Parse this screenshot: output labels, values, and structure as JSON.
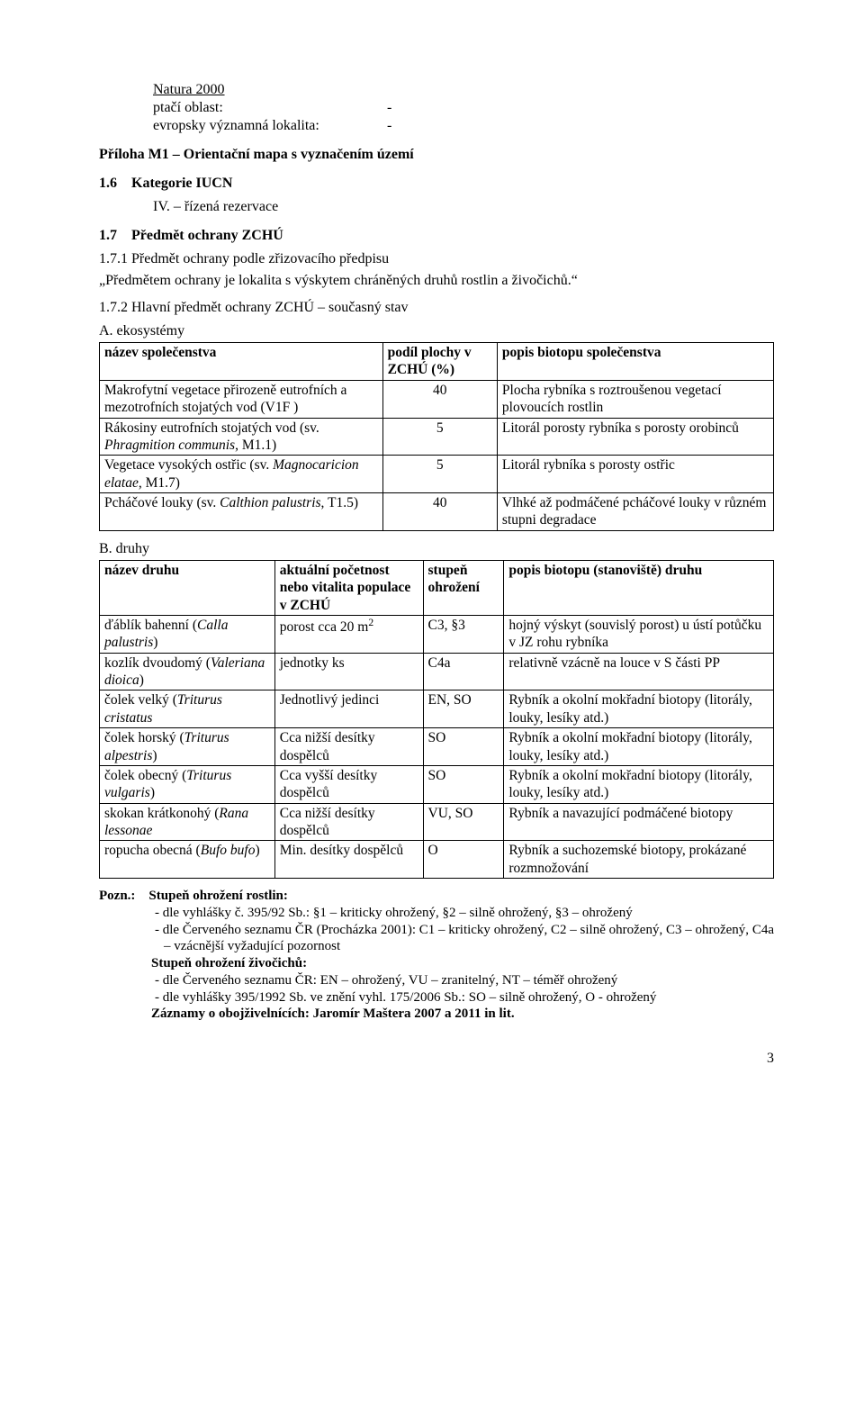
{
  "header": {
    "natura": "Natura 2000",
    "bird_area_lbl": "ptačí oblast:",
    "bird_area_val": "-",
    "eu_site_lbl": "evropsky významná lokalita:",
    "eu_site_val": "-"
  },
  "annex": "Příloha M1 – Orientační mapa s vyznačením území",
  "s16": {
    "num": "1.6",
    "title": "Kategorie IUCN",
    "line": "IV. – řízená rezervace"
  },
  "s17": {
    "num": "1.7",
    "title": "Předmět ochrany ZCHÚ"
  },
  "s171": {
    "title": "1.7.1 Předmět ochrany podle zřizovacího předpisu",
    "text": "„Předmětem ochrany je lokalita s výskytem chráněných druhů rostlin a živočichů.“"
  },
  "s172": {
    "title": "1.7.2 Hlavní předmět ochrany ZCHÚ – současný stav"
  },
  "secA": {
    "label": "A. ekosystémy",
    "head": {
      "c1": "název společenstva",
      "c2": "podíl  plochy v ZCHÚ (%)",
      "c3": "popis biotopu společenstva"
    },
    "rows": [
      {
        "c1": "Makrofytní vegetace přirozeně eutrofních a mezotrofních stojatých vod (V1F )",
        "c2": "40",
        "c3": "Plocha rybníka s roztroušenou vegetací plovoucích rostlin"
      },
      {
        "c1_a": "Rákosiny eutrofních stojatých vod (sv. ",
        "c1_i": "Phragmition communis",
        "c1_b": ", M1.1)",
        "c2": "5",
        "c3": "Litorál porosty rybníka s porosty orobinců"
      },
      {
        "c1_a": "Vegetace vysokých ostřic (sv. ",
        "c1_i": "Magnocaricion elatae",
        "c1_b": ", M1.7)",
        "c2": "5",
        "c3": "Litorál rybníka s porosty ostřic"
      },
      {
        "c1_a": "Pcháčové louky (sv. ",
        "c1_i": "Calthion palustris",
        "c1_b": ", T1.5)",
        "c2": "40",
        "c3": "Vlhké až podmáčené pcháčové louky v různém stupni degradace"
      }
    ]
  },
  "secB": {
    "label": "B. druhy",
    "head": {
      "c1": "název druhu",
      "c2": "aktuální početnost nebo vitalita populace v ZCHÚ",
      "c3": "stupeň ohrožení",
      "c4": "popis biotopu (stanoviště) druhu"
    },
    "rows": [
      {
        "c1_a": "ďáblík bahenní (",
        "c1_i": "Calla palustris",
        "c1_b": ")",
        "c2_html": "porost cca 20 m<sup>2</sup>",
        "c3": "C3, §3",
        "c4": "hojný výskyt (souvislý porost) u ústí potůčku v JZ rohu rybníka"
      },
      {
        "c1_a": "kozlík dvoudomý (",
        "c1_i": "Valeriana dioica",
        "c1_b": ")",
        "c2": "jednotky ks",
        "c3": "C4a",
        "c4": "relativně vzácně na louce v S části PP"
      },
      {
        "c1_a": "čolek velký (",
        "c1_i": "Triturus cristatus",
        "c1_b": "",
        "c2": "Jednotlivý jedinci",
        "c3": "EN, SO",
        "c4": "Rybník a okolní mokřadní biotopy (litorály, louky, lesíky atd.)"
      },
      {
        "c1_a": "čolek horský (",
        "c1_i": "Triturus alpestris",
        "c1_b": ")",
        "c2": "Cca nižší desítky dospělců",
        "c3": "SO",
        "c4": "Rybník a okolní mokřadní biotopy (litorály, louky, lesíky atd.)"
      },
      {
        "c1_a": "čolek obecný (",
        "c1_i": "Triturus vulgaris",
        "c1_b": ")",
        "c2": "Cca vyšší desítky dospělců",
        "c3": "SO",
        "c4": "Rybník a okolní mokřadní biotopy (litorály, louky, lesíky atd.)"
      },
      {
        "c1_a": "skokan krátkonohý (",
        "c1_i": "Rana lessonae",
        "c1_b": "",
        "c2": "Cca nižší desítky dospělců",
        "c3": "VU, SO",
        "c4": "Rybník a navazující podmáčené biotopy"
      },
      {
        "c1_a": "ropucha obecná (",
        "c1_i": "Bufo bufo",
        "c1_b": ")",
        "c2": "Min. desítky dospělců",
        "c3": "O",
        "c4": "Rybník a suchozemské biotopy, prokázané rozmnožování"
      }
    ]
  },
  "foot": {
    "pozn": "Pozn.:",
    "r_lbl": "Stupeň ohrožení rostlin:",
    "r1": "- dle vyhlášky č. 395/92 Sb.: §1 – kriticky ohrožený, §2 – silně ohrožený, §3 – ohrožený",
    "r2": "- dle Červeného seznamu ČR (Procházka 2001): C1 – kriticky ohrožený, C2 – silně ohrožený, C3 – ohrožený, C4a – vzácnější vyžadující pozornost",
    "z_lbl": "Stupeň ohrožení živočichů:",
    "z1": "- dle Červeného seznamu ČR: EN – ohrožený, VU – zranitelný, NT – téměř ohrožený",
    "z2": "- dle vyhlášky 395/1992 Sb. ve znění vyhl. 175/2006 Sb.: SO – silně ohrožený, O - ohrožený",
    "rec": "Záznamy o obojživelnících: Jaromír Maštera 2007 a 2011 in lit."
  },
  "page": "3"
}
